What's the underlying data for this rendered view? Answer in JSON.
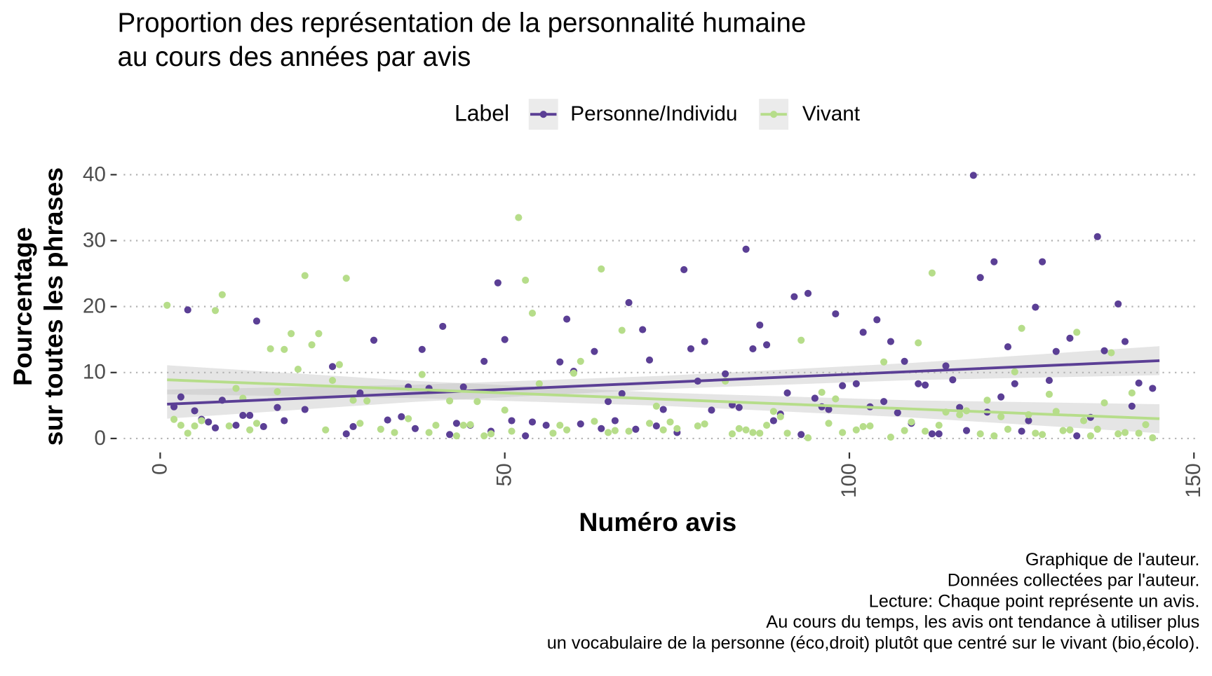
{
  "chart_data": {
    "type": "scatter",
    "title": [
      "Proportion des représentation de la personnalité humaine",
      "au cours des années par avis"
    ],
    "legend_title": "Label",
    "legend_position": "top",
    "x_label": "Numéro avis",
    "y_label": [
      "Pourcentage",
      "sur toutes les phrases"
    ],
    "caption": [
      "Graphique de l'auteur.",
      "Données collectées par l'auteur.",
      "Lecture: Chaque point représente un avis.",
      "Au cours du temps, les avis ont tendance à utiliser plus",
      "un vocabulaire de la personne (éco,droit) plutôt que centré sur le vivant (bio,écolo)."
    ],
    "xlim": [
      -5.3,
      150.6
    ],
    "ylim": [
      -2,
      41.9
    ],
    "xticks": [
      0,
      50,
      100,
      150
    ],
    "yticks": [
      0,
      10,
      20,
      30,
      40
    ],
    "grid": "y-dotted",
    "band_color": "#bdbdbd",
    "series": [
      {
        "name": "Personne/Individu",
        "color": "#5b3f95",
        "x": [
          2,
          3,
          4,
          5,
          6,
          7,
          8,
          9,
          11,
          12,
          13,
          14,
          15,
          17,
          18,
          21,
          25,
          27,
          28,
          29,
          31,
          33,
          35,
          36,
          37,
          38,
          39,
          41,
          42,
          43,
          44,
          45,
          47,
          48,
          49,
          50,
          51,
          53,
          54,
          56,
          58,
          59,
          60,
          61,
          63,
          64,
          65,
          66,
          67,
          68,
          69,
          70,
          71,
          72,
          73,
          75,
          76,
          77,
          78,
          79,
          80,
          82,
          83,
          84,
          85,
          86,
          87,
          88,
          89,
          90,
          91,
          92,
          93,
          94,
          95,
          96,
          97,
          98,
          99,
          101,
          102,
          103,
          104,
          105,
          106,
          107,
          108,
          109,
          110,
          111,
          112,
          113,
          114,
          115,
          116,
          117,
          118,
          119,
          120,
          121,
          122,
          123,
          124,
          125,
          126,
          127,
          128,
          129,
          130,
          132,
          133,
          135,
          136,
          137,
          139,
          140,
          141,
          142,
          144
        ],
        "values": [
          4.8,
          6.3,
          19.5,
          4.2,
          2.9,
          2.5,
          1.6,
          5.8,
          2.0,
          3.5,
          3.5,
          17.8,
          1.8,
          4.7,
          2.7,
          4.4,
          10.9,
          0.7,
          1.8,
          6.9,
          14.9,
          2.8,
          3.3,
          7.8,
          1.5,
          13.5,
          7.6,
          17.0,
          0.6,
          2.3,
          7.8,
          2.0,
          11.7,
          1.1,
          23.6,
          15.0,
          2.7,
          0.4,
          2.5,
          2.0,
          11.6,
          18.1,
          10.2,
          2.2,
          13.2,
          1.5,
          5.6,
          2.7,
          6.8,
          20.6,
          1.4,
          16.5,
          11.9,
          1.9,
          4.4,
          0.9,
          25.6,
          13.6,
          8.7,
          14.7,
          4.3,
          9.8,
          5.1,
          4.7,
          28.7,
          13.6,
          17.2,
          14.2,
          2.7,
          3.7,
          6.9,
          21.5,
          0.6,
          22.0,
          6.1,
          4.8,
          4.4,
          18.9,
          8.0,
          8.3,
          16.1,
          4.8,
          18.0,
          5.6,
          14.7,
          3.9,
          11.7,
          2.3,
          8.3,
          8.1,
          0.7,
          0.7,
          11.0,
          8.9,
          4.7,
          1.2,
          39.9,
          24.4,
          4.0,
          26.8,
          6.3,
          13.9,
          8.3,
          1.1,
          2.7,
          19.9,
          26.8,
          8.8,
          13.2,
          15.2,
          0.4,
          3.2,
          30.6,
          13.3,
          20.4,
          14.7,
          4.9,
          8.4,
          7.6
        ],
        "trend": {
          "x": [
            1,
            37,
            73,
            109,
            145
          ],
          "values": [
            5.2,
            6.85,
            8.5,
            10.15,
            11.8
          ],
          "lower": [
            3.0,
            5.55,
            7.5,
            8.85,
            9.6
          ],
          "upper": [
            7.4,
            8.15,
            9.5,
            11.45,
            14.0
          ]
        }
      },
      {
        "name": "Vivant",
        "color": "#b6dd8a",
        "x": [
          1,
          2,
          3,
          4,
          5,
          6,
          8,
          9,
          10,
          11,
          12,
          13,
          14,
          16,
          17,
          18,
          19,
          20,
          21,
          22,
          23,
          24,
          25,
          26,
          27,
          28,
          29,
          30,
          32,
          34,
          36,
          38,
          39,
          40,
          42,
          43,
          44,
          45,
          46,
          47,
          48,
          50,
          51,
          52,
          53,
          54,
          55,
          57,
          58,
          59,
          60,
          61,
          63,
          64,
          65,
          66,
          67,
          68,
          71,
          72,
          73,
          74,
          75,
          78,
          79,
          82,
          83,
          84,
          85,
          86,
          87,
          88,
          89,
          90,
          91,
          93,
          94,
          96,
          97,
          98,
          99,
          101,
          102,
          103,
          105,
          106,
          108,
          109,
          110,
          111,
          112,
          113,
          114,
          116,
          117,
          119,
          120,
          121,
          122,
          123,
          124,
          125,
          126,
          127,
          128,
          129,
          130,
          131,
          132,
          133,
          134,
          135,
          136,
          137,
          138,
          139,
          140,
          141,
          142,
          143,
          144
        ],
        "values": [
          20.2,
          2.9,
          2.0,
          0.8,
          1.9,
          2.7,
          19.4,
          21.8,
          1.9,
          7.6,
          6.1,
          1.3,
          2.3,
          13.6,
          7.1,
          13.5,
          15.9,
          10.5,
          24.7,
          14.2,
          15.9,
          1.3,
          8.8,
          11.2,
          24.3,
          5.8,
          2.3,
          5.7,
          1.4,
          0.9,
          3.0,
          9.7,
          0.9,
          2.0,
          5.7,
          0.4,
          2.0,
          2.1,
          5.6,
          0.4,
          0.7,
          4.3,
          1.1,
          33.5,
          24.0,
          19.0,
          8.3,
          0.8,
          2.0,
          1.3,
          9.9,
          11.7,
          2.6,
          25.7,
          0.9,
          1.2,
          16.4,
          1.1,
          2.3,
          4.9,
          1.3,
          2.5,
          1.5,
          1.9,
          2.2,
          8.7,
          0.7,
          1.5,
          1.3,
          0.9,
          0.8,
          2.0,
          4.1,
          3.3,
          0.8,
          14.9,
          0.1,
          7.0,
          2.3,
          6.0,
          0.9,
          1.3,
          1.8,
          1.9,
          11.6,
          0.2,
          1.2,
          2.5,
          14.5,
          1.1,
          25.1,
          2.0,
          4.0,
          3.6,
          4.2,
          0.7,
          5.8,
          0.4,
          3.3,
          1.4,
          10.1,
          16.7,
          3.6,
          0.8,
          0.6,
          6.7,
          4.1,
          1.2,
          1.3,
          16.1,
          2.7,
          0.4,
          1.4,
          5.4,
          13.0,
          0.7,
          0.9,
          6.9,
          0.8,
          2.1,
          0.1
        ],
        "trend": {
          "x": [
            1,
            37,
            73,
            109,
            145
          ],
          "values": [
            8.9,
            7.43,
            5.95,
            4.48,
            3.0
          ],
          "lower": [
            6.7,
            6.13,
            4.95,
            3.18,
            0.8
          ],
          "upper": [
            11.1,
            8.73,
            6.95,
            5.78,
            5.2
          ]
        }
      }
    ]
  }
}
